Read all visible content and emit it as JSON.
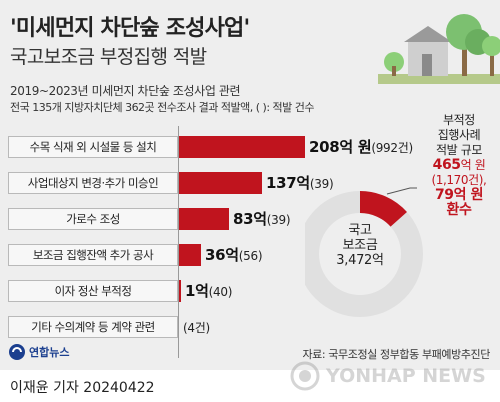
{
  "title": "'미세먼지 차단숲 조성사업'",
  "subtitle": "국고보조금 부정집행 적발",
  "note_line1": "2019~2023년 미세먼지 차단숲 조성사업 관련",
  "note_line2": "전국 135개 지방자치단체 362곳 전수조사 결과 적발액, ( ): 적발 건수",
  "colors": {
    "bar": "#c0141e",
    "pie_main": "#e0e0e0",
    "pie_highlight": "#c0141e",
    "background": "#eeeeee"
  },
  "bars": [
    {
      "label": "수목 식재 외 시설물 등 설치",
      "amount": "208억 원",
      "count": "(992건)"
    },
    {
      "label": "사업대상지 변경·추가 미승인",
      "amount": "137억",
      "count": "(39)"
    },
    {
      "label": "가로수 조성",
      "amount": "83억",
      "count": "(39)"
    },
    {
      "label": "보조금 집행잔액 추가 공사",
      "amount": "36억",
      "count": "(56)"
    },
    {
      "label": "이자 정산 부적정",
      "amount": "1억",
      "count": "(40)"
    },
    {
      "label": "기타 수의계약 등 계약 관련",
      "amount": "",
      "count": "(4건)"
    }
  ],
  "pie": {
    "center_line1": "국고",
    "center_line2": "보조금",
    "center_line3": "3,472억",
    "callout_line1": "부적정",
    "callout_line2": "집행사례",
    "callout_line3": "적발 규모",
    "callout_amount_num": "465",
    "callout_amount_unit": "억 원",
    "callout_count": "(1,170건),",
    "callout_refund_num": "79",
    "callout_refund_unit": "억 원",
    "callout_refund_label": "환수"
  },
  "chart_data": [
    {
      "type": "bar",
      "title": "'미세먼지 차단숲 조성사업'",
      "subtitle": "국고보조금 부정집행 적발",
      "orientation": "horizontal",
      "categories": [
        "수목 식재 외 시설물 등 설치",
        "사업대상지 변경·추가 미승인",
        "가로수 조성",
        "보조금 집행잔액 추가 공사",
        "이자 정산 부적정",
        "기타 수의계약 등 계약 관련"
      ],
      "series": [
        {
          "values": [
            208,
            137,
            83,
            36,
            1,
            0
          ]
        }
      ],
      "counts": [
        992,
        39,
        39,
        56,
        40,
        4
      ],
      "value_unit": "억 원",
      "grid": false
    },
    {
      "type": "pie",
      "categories": [
        "국고 보조금",
        "부적정 집행사례 적발 규모"
      ],
      "values": [
        3472,
        465
      ],
      "labels": [
        "국고 보조금 3,472억",
        "465억 원 (1,170건), 79억 원 환수"
      ]
    }
  ],
  "footer": {
    "logo_text": "연합뉴스",
    "source": "자료: 국무조정실 정부합동 부패예방추진단",
    "byline": "이재윤 기자  20240422",
    "watermark": "YONHAP NEWS"
  }
}
